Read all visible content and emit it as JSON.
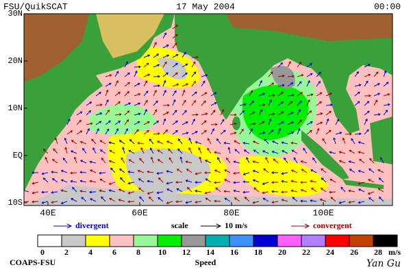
{
  "header": {
    "left": "FSU/QuikSCAT",
    "center": "17 May 2004",
    "right": "00:00"
  },
  "map": {
    "lat_labels": [
      "30N",
      "20N",
      "10N",
      "EQ",
      "10S"
    ],
    "lon_labels": [
      "40E",
      "60E",
      "80E",
      "100E"
    ]
  },
  "legend": {
    "divergent": "divergent",
    "scale": "scale",
    "scale_value": "10 m/s",
    "convergent": "convergent"
  },
  "colorbar": {
    "colors": [
      "#ffffff",
      "#c8c8c8",
      "#ffff00",
      "#ffc0c0",
      "#98f898",
      "#00ee00",
      "#989898",
      "#00b0b0",
      "#4090ff",
      "#0000d0",
      "#ff60ff",
      "#b080ff",
      "#ff0000",
      "#c84000",
      "#000000"
    ],
    "ticks": [
      0,
      2,
      4,
      6,
      8,
      10,
      12,
      14,
      16,
      18,
      20,
      22,
      24,
      26,
      28
    ],
    "unit": "m/s",
    "label": "Speed"
  },
  "footer": {
    "left": "COAPS-FSU",
    "right": "Yan Gu"
  }
}
